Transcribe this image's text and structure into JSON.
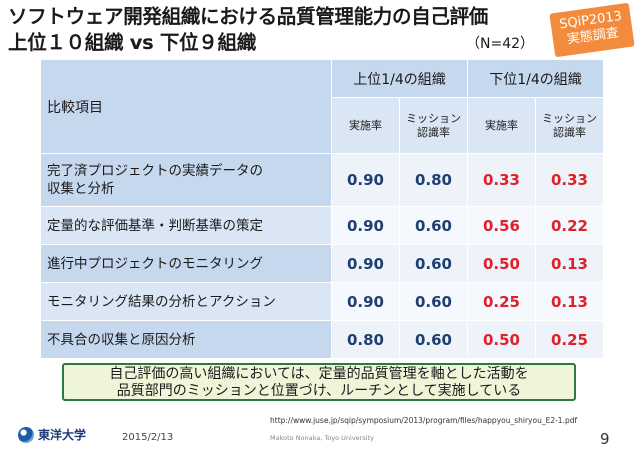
{
  "slide": {
    "title_line1": "ソフトウェア開発組織における品質管理能力の自己評価",
    "title_line2": "上位１０組織 vs 下位９組織",
    "n_label": "（N=42）",
    "badge_line1": "SQiP2013",
    "badge_line2": "実態調査"
  },
  "table": {
    "header_item": "比較項目",
    "group_top": "上位1/4の組織",
    "group_bottom": "下位1/4の組織",
    "sub_impl": "実施率",
    "sub_mission_1": "ミッション",
    "sub_mission_2": "認識率",
    "rows": [
      {
        "item_1": "完了済プロジェクトの実績データの",
        "item_2": "収集と分析",
        "top_impl": "0.90",
        "top_mission": "0.80",
        "bot_impl": "0.33",
        "bot_mission": "0.33"
      },
      {
        "item_1": "定量的な評価基準・判断基準の策定",
        "item_2": "",
        "top_impl": "0.90",
        "top_mission": "0.60",
        "bot_impl": "0.56",
        "bot_mission": "0.22"
      },
      {
        "item_1": "進行中プロジェクトのモニタリング",
        "item_2": "",
        "top_impl": "0.90",
        "top_mission": "0.60",
        "bot_impl": "0.50",
        "bot_mission": "0.13"
      },
      {
        "item_1": "モニタリング結果の分析とアクション",
        "item_2": "",
        "top_impl": "0.90",
        "top_mission": "0.60",
        "bot_impl": "0.25",
        "bot_mission": "0.13"
      },
      {
        "item_1": "不具合の収集と原因分析",
        "item_2": "",
        "top_impl": "0.80",
        "top_mission": "0.60",
        "bot_impl": "0.50",
        "bot_mission": "0.25"
      }
    ]
  },
  "summary": {
    "line1": "自己評価の高い組織においては、定量的品質管理を軸とした活動を",
    "line2": "品質部門のミッションと位置づけ、ルーチンとして実施している"
  },
  "footer": {
    "url": "http://www.juse.jp/sqip/symposium/2013/program/files/happyou_shiryou_E2-1.pdf",
    "logo_text": "東洋大学",
    "date": "2015/2/13",
    "author": "Makoto Nonaka,  Toyo University",
    "page": "9"
  },
  "colors": {
    "accent_orange": "#f28c3c",
    "header_blue": "#c6d8ee",
    "value_blue": "#1f3f73",
    "value_red": "#e0202a",
    "summary_border": "#2e7a3a",
    "summary_fill": "#eef5d8"
  }
}
